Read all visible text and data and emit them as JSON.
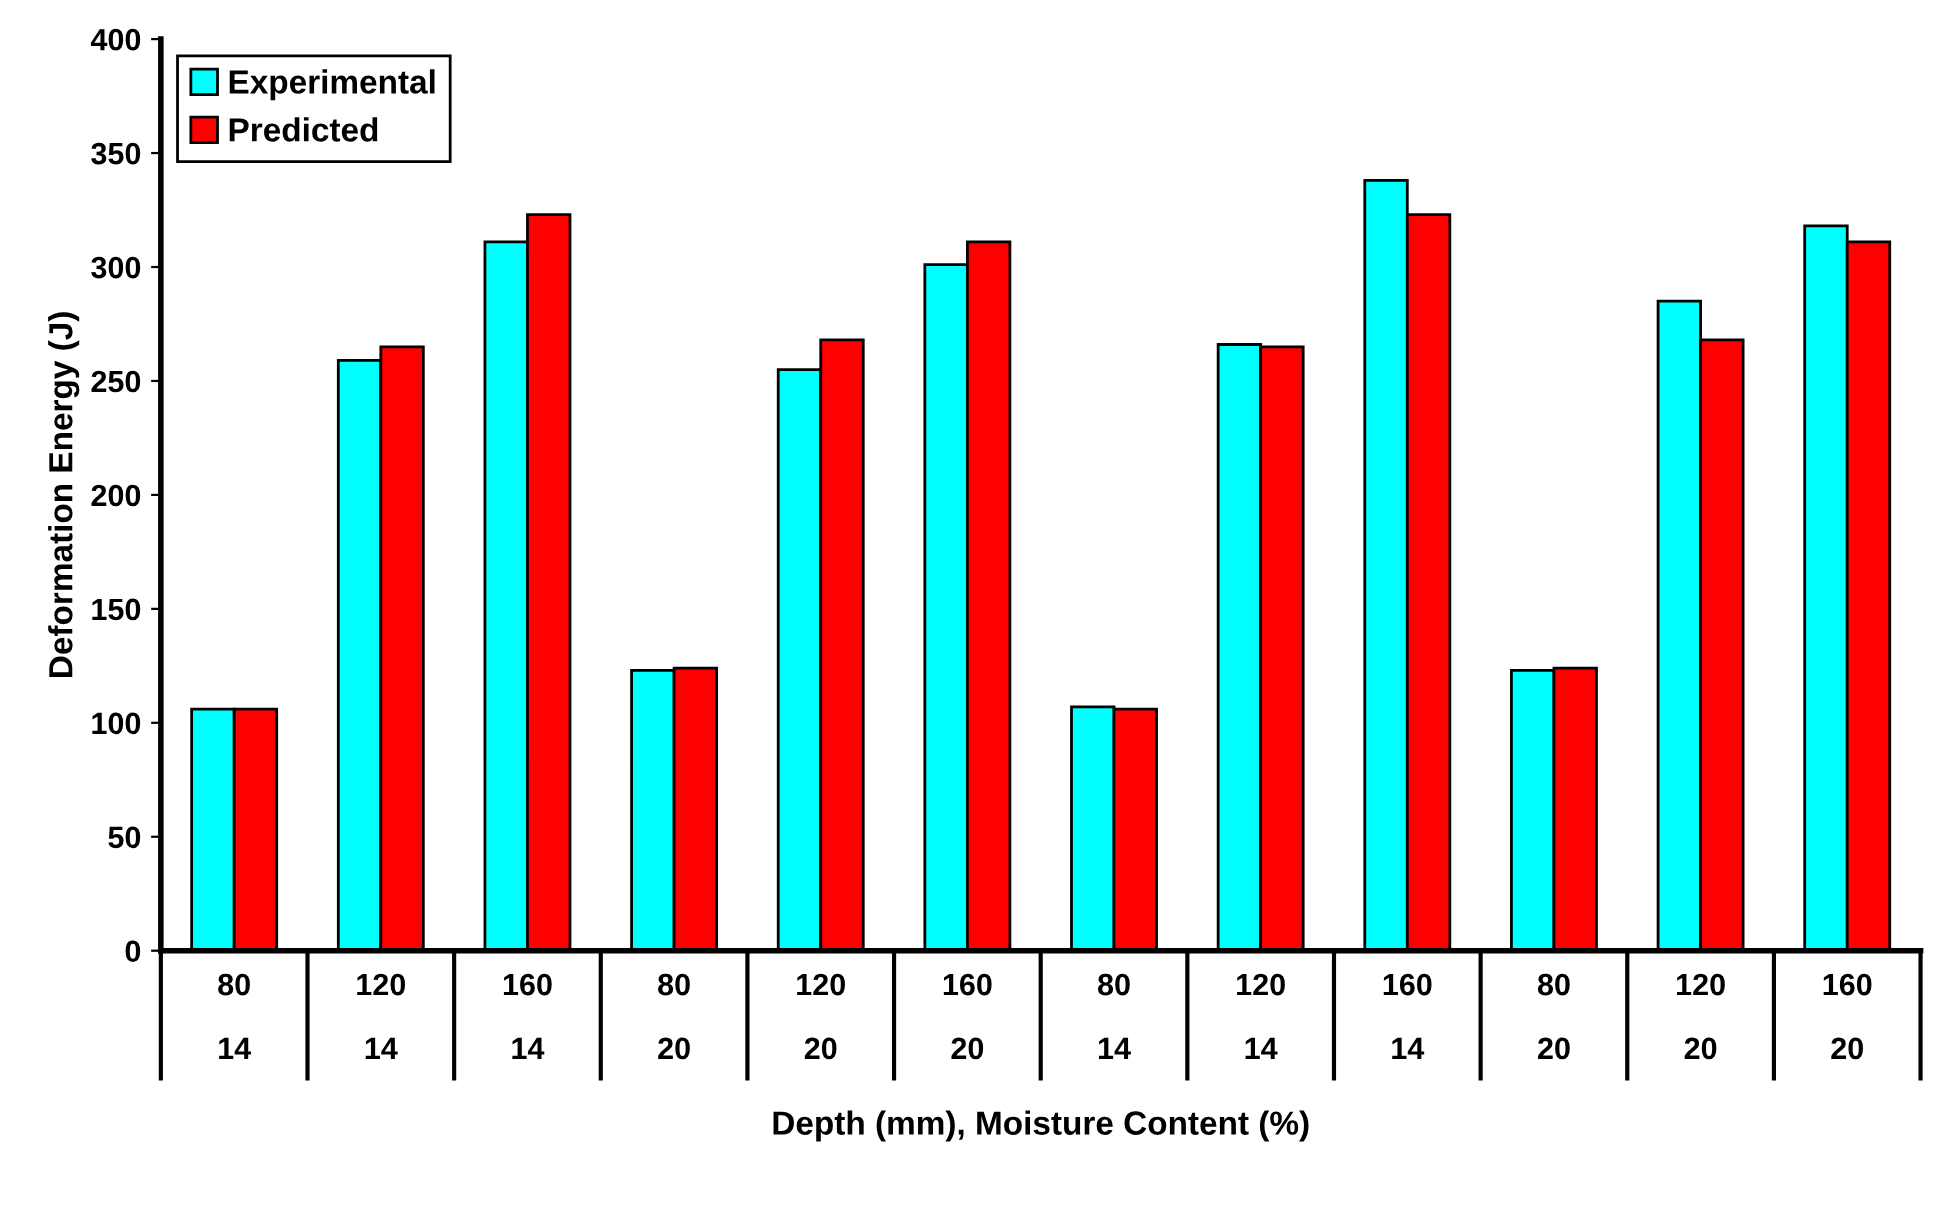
{
  "chart_data": {
    "type": "bar",
    "xlabel": "Depth (mm), Moisture Content (%)",
    "ylabel": "Deformation Energy (J)",
    "categories": [
      "80\n14",
      "120\n14",
      "160\n14",
      "80\n20",
      "120\n20",
      "160\n20",
      "80\n14",
      "120\n14",
      "160\n14",
      "80\n20",
      "120\n20",
      "160\n20"
    ],
    "series": [
      {
        "name": "Experimental",
        "color": "#00ffff",
        "values": [
          106,
          259,
          311,
          123,
          255,
          301,
          107,
          266,
          338,
          123,
          285,
          318
        ]
      },
      {
        "name": "Predicted",
        "color": "#ff0000",
        "values": [
          106,
          265,
          323,
          124,
          268,
          311,
          106,
          265,
          323,
          124,
          268,
          311
        ]
      }
    ],
    "ylim": [
      0,
      400
    ],
    "yticks": [
      0,
      50,
      100,
      150,
      200,
      250,
      300,
      350,
      400
    ],
    "grid": false,
    "legend": "top left"
  }
}
